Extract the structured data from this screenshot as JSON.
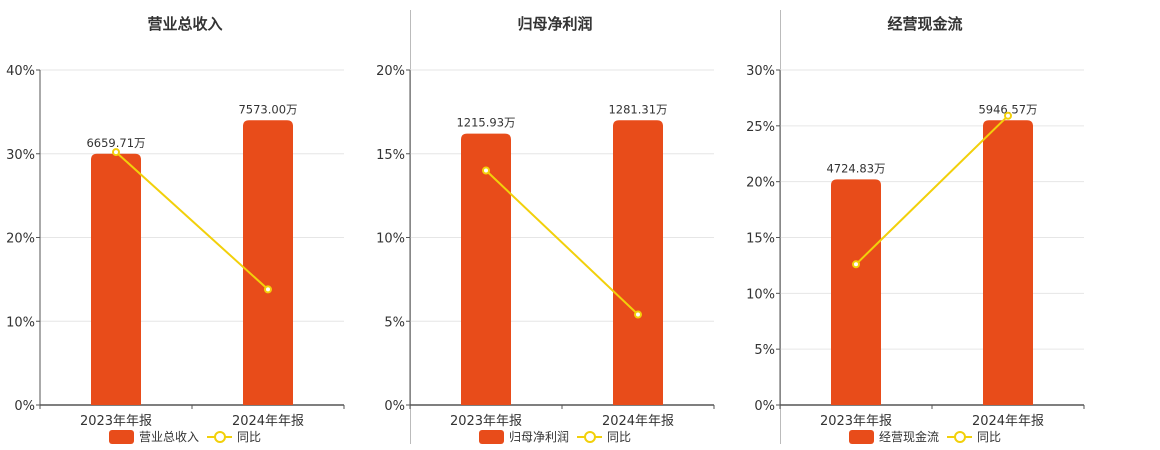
{
  "colors": {
    "bar": "#e84c1a",
    "line": "#f2d00b",
    "grid": "#e6e6e6",
    "axis": "#555555",
    "text": "#333333"
  },
  "chart_data": [
    {
      "type": "bar",
      "title": "营业总收入",
      "categories": [
        "2023年年报",
        "2024年年报"
      ],
      "yticks": [
        "0%",
        "10%",
        "20%",
        "30%",
        "40%"
      ],
      "ylim": [
        0,
        40
      ],
      "series": [
        {
          "name": "营业总收入",
          "kind": "bar",
          "values": [
            30,
            34
          ],
          "labels": [
            "6659.71万",
            "7573.00万"
          ]
        },
        {
          "name": "同比",
          "kind": "line",
          "values": [
            30.2,
            13.8
          ]
        }
      ],
      "legend": "bottom"
    },
    {
      "type": "bar",
      "title": "归母净利润",
      "categories": [
        "2023年年报",
        "2024年年报"
      ],
      "yticks": [
        "0%",
        "5%",
        "10%",
        "15%",
        "20%"
      ],
      "ylim": [
        0,
        20
      ],
      "series": [
        {
          "name": "归母净利润",
          "kind": "bar",
          "values": [
            16.2,
            17.0
          ],
          "labels": [
            "1215.93万",
            "1281.31万"
          ]
        },
        {
          "name": "同比",
          "kind": "line",
          "values": [
            14.0,
            5.4
          ]
        }
      ],
      "legend": "bottom"
    },
    {
      "type": "bar",
      "title": "经营现金流",
      "categories": [
        "2023年年报",
        "2024年年报"
      ],
      "yticks": [
        "0%",
        "5%",
        "10%",
        "15%",
        "20%",
        "25%",
        "30%"
      ],
      "ylim": [
        0,
        30
      ],
      "series": [
        {
          "name": "经营现金流",
          "kind": "bar",
          "values": [
            20.2,
            25.5
          ],
          "labels": [
            "4724.83万",
            "5946.57万"
          ]
        },
        {
          "name": "同比",
          "kind": "line",
          "values": [
            12.6,
            25.9
          ]
        }
      ],
      "legend": "bottom"
    }
  ]
}
